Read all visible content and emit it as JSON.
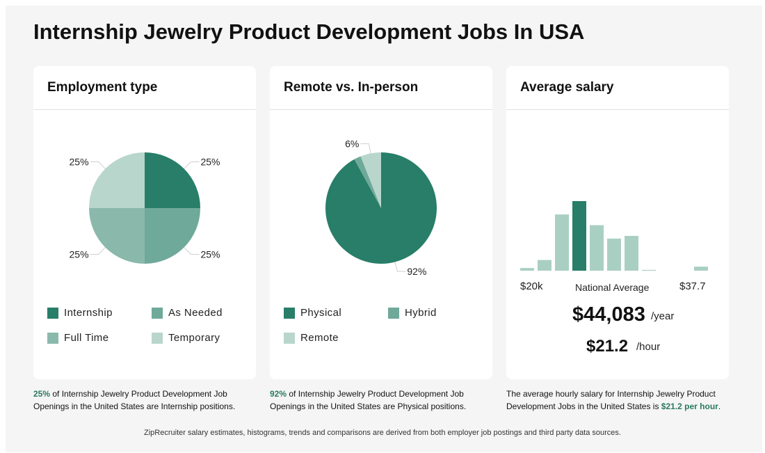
{
  "page": {
    "title": "Internship Jewelry Product Development Jobs In USA"
  },
  "colors": {
    "dark": "#287e68",
    "mid": "#6fa999",
    "light": "#8ab9ab",
    "pale": "#b8d6cc",
    "highlight": "#2a7a60"
  },
  "chart_data": [
    {
      "type": "pie",
      "title": "Employment type",
      "slices": [
        {
          "name": "Internship",
          "value": 25,
          "label": "25%",
          "color": "#287e68"
        },
        {
          "name": "As Needed",
          "value": 25,
          "label": "25%",
          "color": "#6fa999"
        },
        {
          "name": "Full Time",
          "value": 25,
          "label": "25%",
          "color": "#8ab9ab"
        },
        {
          "name": "Temporary",
          "value": 25,
          "label": "25%",
          "color": "#b8d6cc"
        }
      ],
      "legend": "bottom"
    },
    {
      "type": "pie",
      "title": "Remote vs. In-person",
      "slices": [
        {
          "name": "Physical",
          "value": 92,
          "label": "92%",
          "color": "#287e68"
        },
        {
          "name": "Hybrid",
          "value": 2,
          "label": "",
          "color": "#6fa999"
        },
        {
          "name": "Remote",
          "value": 6,
          "label": "6%",
          "color": "#b8d6cc"
        }
      ],
      "legend": "bottom"
    },
    {
      "type": "bar",
      "title": "Average salary",
      "values": [
        1,
        4,
        21,
        26,
        17,
        12,
        13,
        0.3,
        0,
        0,
        1.5
      ],
      "highlight_index": 3,
      "x_min_label": "$20k",
      "x_max_label": "$37.7",
      "marker_label": "National Average"
    }
  ],
  "cards": {
    "employment": {
      "title": "Employment type",
      "legend": [
        "Internship",
        "As Needed",
        "Full Time",
        "Temporary"
      ]
    },
    "remote": {
      "title": "Remote vs. In-person",
      "legend": [
        "Physical",
        "Hybrid",
        "Remote"
      ]
    },
    "salary": {
      "title": "Average salary",
      "yearly": "$44,083",
      "yearly_unit": "/year",
      "hourly": "$21.2",
      "hourly_unit": "/hour"
    }
  },
  "captions": {
    "employment": {
      "pct": "25%",
      "rest": " of Internship Jewelry Product Development Job Openings in the United States are Internship positions."
    },
    "remote": {
      "pct": "92%",
      "rest": " of Internship Jewelry Product Development Job Openings in the United States are Physical positions."
    },
    "salary": {
      "pre": "The average hourly salary for Internship Jewelry Product Development Jobs in the United States is ",
      "value": "$21.2 per hour",
      "post": "."
    }
  },
  "footer": "ZipRecruiter salary estimates, histograms, trends and comparisons are derived from both employer job postings and third party data sources."
}
